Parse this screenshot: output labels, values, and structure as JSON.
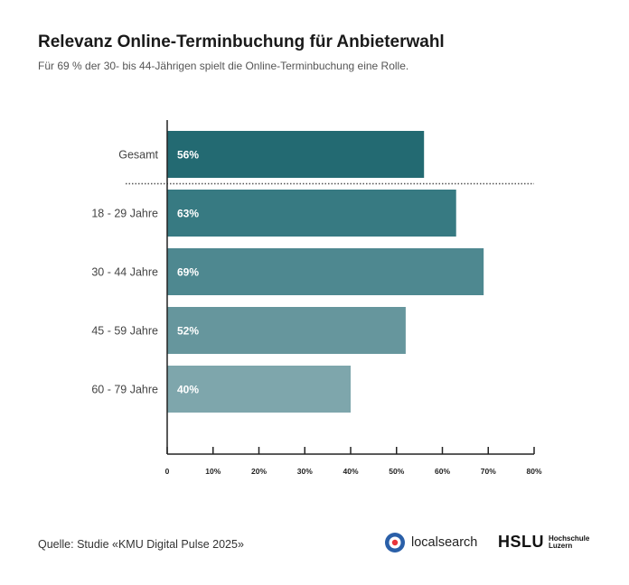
{
  "title": "Relevanz Online-Terminbuchung für Anbieterwahl",
  "subtitle": "Für 69 % der 30- bis 44-Jährigen spielt die Online-Terminbuchung eine Rolle.",
  "source": "Quelle: Studie «KMU Digital Pulse 2025»",
  "logos": {
    "localsearch": "localsearch",
    "hslu_main": "HSLU",
    "hslu_sub_1": "Hochschule",
    "hslu_sub_2": "Luzern"
  },
  "chart_data": {
    "type": "bar",
    "orientation": "horizontal",
    "categories": [
      "Gesamt",
      "18 - 29 Jahre",
      "30 - 44 Jahre",
      "45 - 59 Jahre",
      "60 - 79 Jahre"
    ],
    "values": [
      56,
      63,
      69,
      52,
      40
    ],
    "value_labels": [
      "56%",
      "63%",
      "69%",
      "52%",
      "40%"
    ],
    "colors": [
      "#236a72",
      "#377a82",
      "#4e8890",
      "#66969d",
      "#7ea6ac"
    ],
    "xlim": [
      0,
      80
    ],
    "xticks": [
      0,
      10,
      20,
      30,
      40,
      50,
      60,
      70,
      80
    ],
    "xtick_labels": [
      "0",
      "10%",
      "20%",
      "30%",
      "40%",
      "50%",
      "60%",
      "70%",
      "80%"
    ],
    "separator_after": "Gesamt",
    "xlabel": "",
    "ylabel": "",
    "grid": false
  }
}
